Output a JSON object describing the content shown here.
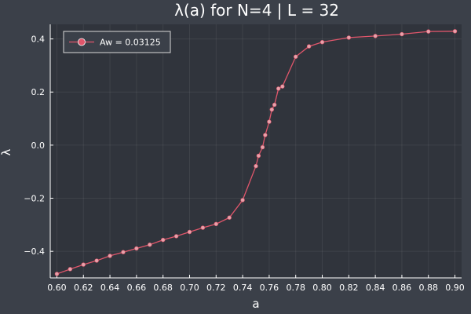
{
  "chart_data": {
    "type": "line",
    "title": "λ(a) for N=4 | L = 32",
    "xlabel": "a",
    "ylabel": "λ",
    "xlim": [
      0.595,
      0.905
    ],
    "ylim": [
      -0.5,
      0.455
    ],
    "xticks": [
      0.6,
      0.62,
      0.64,
      0.66,
      0.68,
      0.7,
      0.72,
      0.74,
      0.76,
      0.78,
      0.8,
      0.82,
      0.84,
      0.86,
      0.88,
      0.9
    ],
    "xtick_labels": [
      "0.60",
      "0.62",
      "0.64",
      "0.66",
      "0.68",
      "0.70",
      "0.72",
      "0.74",
      "0.76",
      "0.78",
      "0.80",
      "0.82",
      "0.84",
      "0.86",
      "0.88",
      "0.90"
    ],
    "yticks": [
      -0.4,
      -0.2,
      0.0,
      0.2,
      0.4
    ],
    "ytick_labels": [
      "−0.4",
      "−0.2",
      "0.0",
      "0.2",
      "0.4"
    ],
    "grid": true,
    "legend": "top-left",
    "series": [
      {
        "name": "Aw = 0.03125",
        "color": "#e0566b",
        "x": [
          0.6,
          0.61,
          0.62,
          0.63,
          0.64,
          0.65,
          0.66,
          0.67,
          0.68,
          0.69,
          0.7,
          0.71,
          0.72,
          0.73,
          0.74,
          0.75,
          0.752,
          0.755,
          0.757,
          0.76,
          0.762,
          0.764,
          0.767,
          0.77,
          0.78,
          0.79,
          0.8,
          0.82,
          0.84,
          0.86,
          0.88,
          0.9
        ],
        "y": [
          -0.485,
          -0.467,
          -0.45,
          -0.435,
          -0.417,
          -0.403,
          -0.389,
          -0.375,
          -0.357,
          -0.343,
          -0.327,
          -0.311,
          -0.297,
          -0.273,
          -0.207,
          -0.079,
          -0.04,
          -0.008,
          0.038,
          0.088,
          0.134,
          0.152,
          0.213,
          0.221,
          0.333,
          0.372,
          0.388,
          0.405,
          0.411,
          0.418,
          0.428,
          0.429
        ]
      }
    ]
  }
}
